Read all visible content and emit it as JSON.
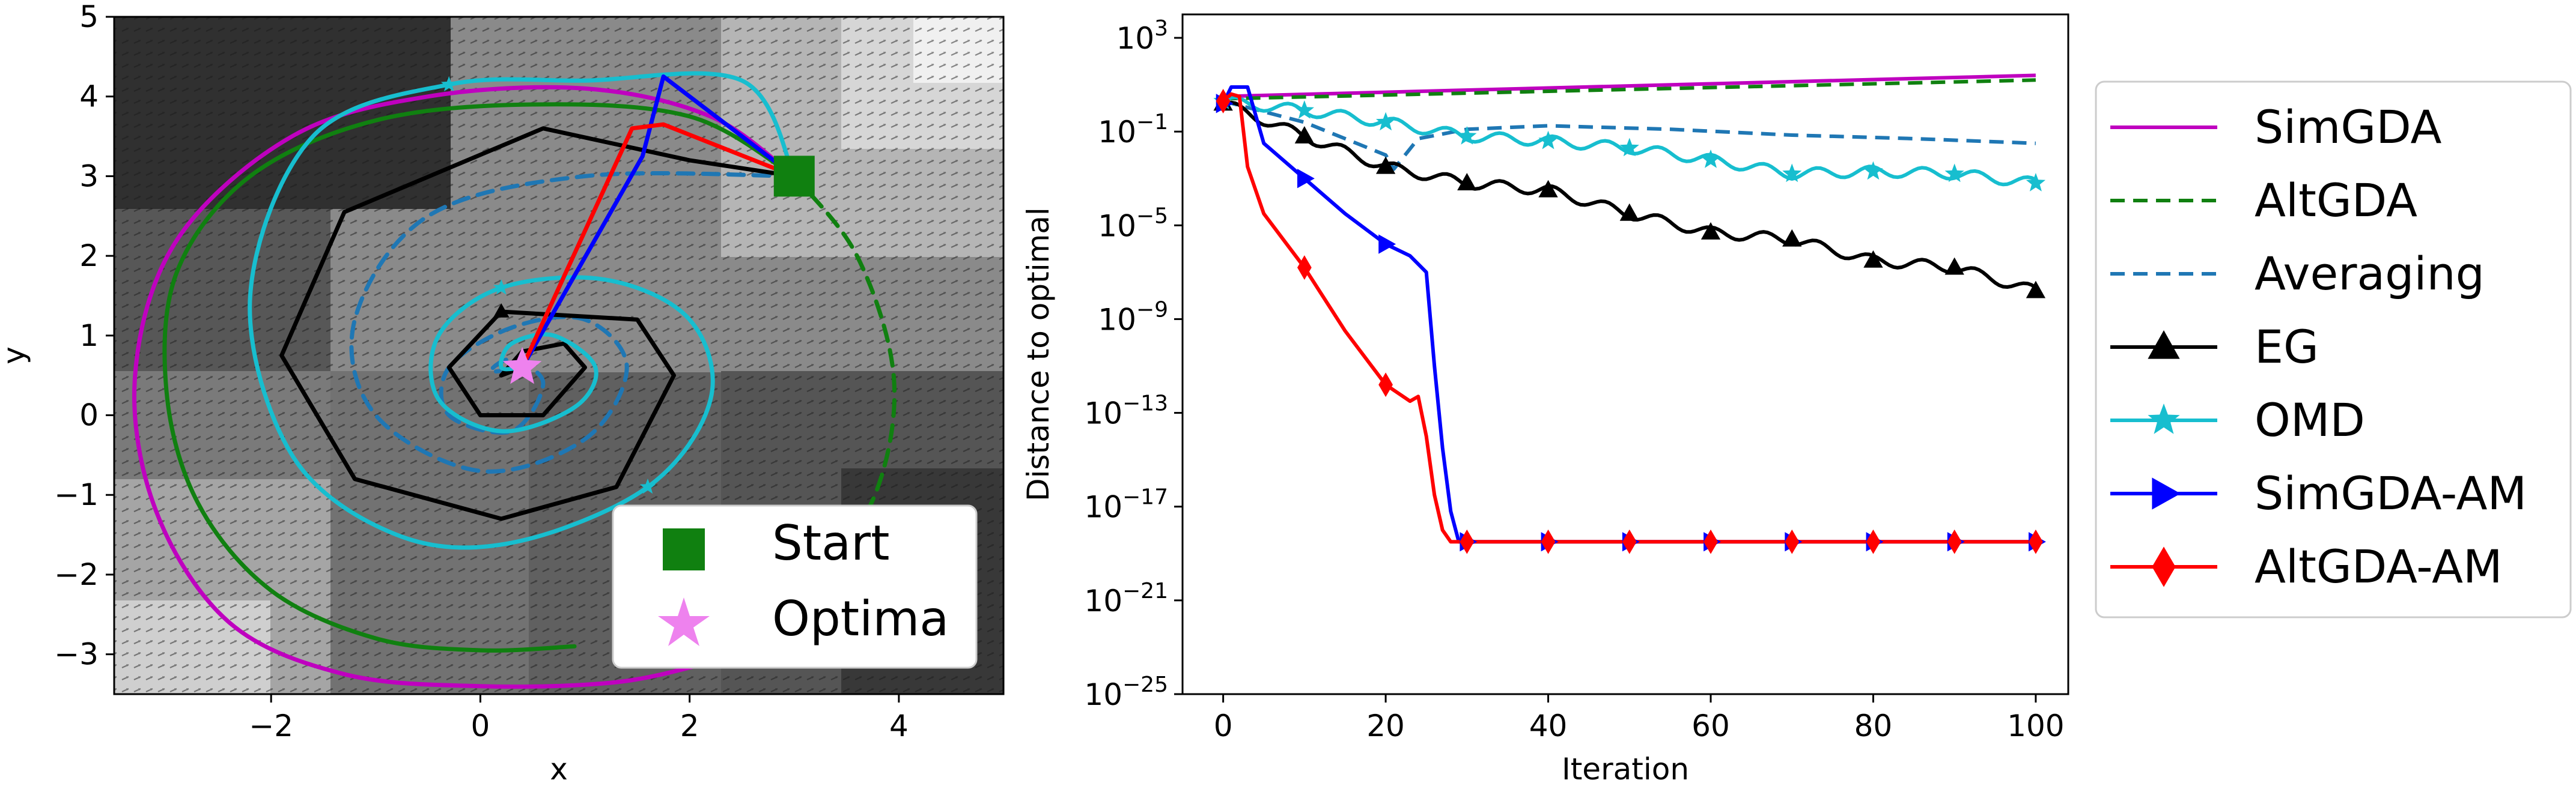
{
  "chart_data": [
    {
      "type": "contour-trajectory",
      "title": "",
      "xlabel": "x",
      "ylabel": "y",
      "xlim": [
        -3.5,
        5
      ],
      "ylim": [
        -3.5,
        5
      ],
      "xticks": [
        "−2",
        "0",
        "2",
        "4"
      ],
      "yticks": [
        "−3",
        "−2",
        "−1",
        "0",
        "1",
        "2",
        "3",
        "4",
        "5"
      ],
      "xtick_values": [
        -2,
        0,
        2,
        4
      ],
      "ytick_values": [
        -3,
        -2,
        -1,
        0,
        1,
        2,
        3,
        4,
        5
      ],
      "legend": [
        {
          "label": "Start",
          "marker": "square",
          "color": "#108010"
        },
        {
          "label": "Optima",
          "marker": "star",
          "color": "#ee82ee"
        }
      ],
      "start": [
        3,
        3
      ],
      "optima": [
        0.4,
        0.6
      ],
      "series": [
        {
          "name": "SimGDA",
          "color": "#bf00bf",
          "style": "solid",
          "x": [
            3.0,
            2.2,
            1.0,
            -0.5,
            -1.8,
            -2.9,
            -3.3,
            -3.1,
            -2.4,
            -1.3,
            0.0,
            1.3,
            2.2
          ],
          "y": [
            3.0,
            3.75,
            4.1,
            4.0,
            3.5,
            2.2,
            0.5,
            -1.2,
            -2.6,
            -3.25,
            -3.4,
            -3.35,
            -3.1
          ]
        },
        {
          "name": "AltGDA",
          "color": "#108010",
          "style": "solid",
          "x": [
            3.0,
            2.0,
            0.5,
            -1.0,
            -2.2,
            -2.9,
            -3.0,
            -2.7,
            -2.0,
            -1.0,
            0.0,
            0.9
          ],
          "y": [
            3.0,
            3.75,
            3.9,
            3.7,
            3.0,
            1.8,
            0.3,
            -1.1,
            -2.2,
            -2.8,
            -2.95,
            -2.9
          ]
        },
        {
          "name": "AltGDA (dashed)",
          "color": "#108010",
          "style": "dashed",
          "x": [
            3.0,
            3.6,
            3.95,
            3.8,
            3.3,
            2.5,
            1.6
          ],
          "y": [
            3.0,
            2.0,
            0.5,
            -0.9,
            -1.9,
            -2.6,
            -2.95
          ]
        },
        {
          "name": "Averaging",
          "color": "#1f77b4",
          "style": "dashed",
          "x": [
            3.0,
            1.0,
            -0.5,
            -1.2,
            -1.0,
            0.0,
            1.0,
            1.4,
            1.0,
            0.3,
            -0.3,
            -0.3,
            0.3,
            0.6,
            0.3,
            0.1,
            0.4
          ],
          "y": [
            3.0,
            3.0,
            2.5,
            1.2,
            0.0,
            -0.7,
            -0.3,
            0.6,
            1.2,
            1.1,
            0.6,
            0.0,
            -0.2,
            0.4,
            0.7,
            0.55,
            0.6
          ]
        },
        {
          "name": "EG",
          "color": "#000000",
          "style": "solid",
          "x": [
            3.0,
            2.0,
            0.6,
            -1.3,
            -1.9,
            -1.2,
            0.2,
            1.3,
            1.85,
            1.5,
            0.2,
            -0.3,
            0.0,
            0.6,
            1.0,
            0.8,
            0.4,
            0.2,
            0.4
          ],
          "y": [
            3.0,
            3.2,
            3.6,
            2.55,
            0.75,
            -0.8,
            -1.3,
            -0.9,
            0.5,
            1.2,
            1.3,
            0.6,
            0.0,
            0.0,
            0.6,
            0.9,
            0.8,
            0.5,
            0.6
          ]
        },
        {
          "name": "OMD",
          "color": "#17becf",
          "style": "solid",
          "x": [
            3.0,
            2.5,
            1.0,
            -0.3,
            -1.6,
            -2.2,
            -1.8,
            -0.8,
            0.3,
            1.6,
            2.2,
            2.0,
            1.2,
            0.2,
            -0.4,
            -0.4,
            0.2,
            0.9,
            1.1,
            0.7,
            0.3,
            0.2,
            0.4
          ],
          "y": [
            3.0,
            4.2,
            4.2,
            4.15,
            3.5,
            1.5,
            -0.5,
            -1.5,
            -1.6,
            -0.9,
            0.2,
            1.2,
            1.7,
            1.6,
            1.0,
            0.2,
            -0.2,
            0.1,
            0.6,
            1.0,
            0.9,
            0.6,
            0.6
          ]
        },
        {
          "name": "SimGDA-AM",
          "color": "#0000ff",
          "style": "solid",
          "x": [
            3.0,
            1.75,
            1.55,
            0.4
          ],
          "y": [
            3.0,
            4.25,
            3.25,
            0.6
          ]
        },
        {
          "name": "AltGDA-AM",
          "color": "#ff0000",
          "style": "solid",
          "x": [
            3.0,
            1.75,
            1.45,
            0.4
          ],
          "y": [
            3.0,
            3.65,
            3.6,
            0.6
          ]
        }
      ]
    },
    {
      "type": "line",
      "title": "",
      "xlabel": "Iteration",
      "ylabel": "Distance to optimal",
      "yscale": "log",
      "xlim": [
        -5,
        104
      ],
      "ylim_exp": [
        -25,
        4
      ],
      "xticks": [
        "0",
        "20",
        "40",
        "60",
        "80",
        "100"
      ],
      "xtick_values": [
        0,
        20,
        40,
        60,
        80,
        100
      ],
      "ytick_exps": [
        3,
        -1,
        -5,
        -9,
        -13,
        -17,
        -21,
        -25
      ],
      "ytick_labels": [
        "10",
        "10",
        "10",
        "10",
        "10",
        "10",
        "10",
        "10"
      ],
      "ytick_sup": [
        "3",
        "−1",
        "−5",
        "−9",
        "−13",
        "−17",
        "−21",
        "−25"
      ],
      "legend": [
        {
          "label": "SimGDA",
          "color": "#bf00bf",
          "style": "solid",
          "marker": "none"
        },
        {
          "label": "AltGDA",
          "color": "#108010",
          "style": "dashed",
          "marker": "none"
        },
        {
          "label": "Averaging",
          "color": "#1f77b4",
          "style": "dashed",
          "marker": "none"
        },
        {
          "label": "EG",
          "color": "#000000",
          "style": "solid",
          "marker": "triangle"
        },
        {
          "label": "OMD",
          "color": "#17becf",
          "style": "solid",
          "marker": "star"
        },
        {
          "label": "SimGDA-AM",
          "color": "#0000ff",
          "style": "solid",
          "marker": "triangle-right"
        },
        {
          "label": "AltGDA-AM",
          "color": "#ff0000",
          "style": "solid",
          "marker": "diamond"
        }
      ],
      "series": [
        {
          "name": "SimGDA",
          "color": "#bf00bf",
          "style": "solid",
          "marker": "none",
          "x": [
            0,
            100
          ],
          "log10_y": [
            0.5,
            1.4
          ]
        },
        {
          "name": "AltGDA",
          "color": "#108010",
          "style": "dashed",
          "marker": "none",
          "x": [
            0,
            100
          ],
          "log10_y": [
            0.4,
            1.2
          ]
        },
        {
          "name": "Averaging",
          "color": "#1f77b4",
          "style": "dashed",
          "marker": "none",
          "x": [
            0,
            10,
            20,
            21,
            24,
            30,
            40,
            55,
            70,
            85,
            100
          ],
          "log10_y": [
            0.3,
            -0.6,
            -2.0,
            -2.6,
            -1.3,
            -0.9,
            -0.75,
            -0.9,
            -1.15,
            -1.3,
            -1.5
          ]
        },
        {
          "name": "EG",
          "color": "#000000",
          "style": "solid",
          "marker": "triangle",
          "x": [
            0,
            10,
            20,
            30,
            40,
            50,
            60,
            70,
            80,
            90,
            100
          ],
          "log10_y": [
            0.2,
            -1.2,
            -2.5,
            -3.2,
            -3.5,
            -4.5,
            -5.3,
            -5.6,
            -6.5,
            -6.8,
            -7.8
          ],
          "markers_x": [
            0,
            10,
            20,
            30,
            40,
            50,
            60,
            70,
            80,
            90,
            100
          ]
        },
        {
          "name": "OMD",
          "color": "#17becf",
          "style": "solid",
          "marker": "star",
          "x": [
            0,
            10,
            20,
            30,
            40,
            50,
            60,
            70,
            80,
            90,
            100
          ],
          "log10_y": [
            0.3,
            -0.1,
            -0.6,
            -1.2,
            -1.4,
            -1.7,
            -2.2,
            -2.8,
            -2.7,
            -2.8,
            -3.2
          ],
          "markers_x": [
            0,
            10,
            20,
            30,
            40,
            50,
            60,
            70,
            80,
            90,
            100
          ]
        },
        {
          "name": "SimGDA-AM",
          "color": "#0000ff",
          "style": "solid",
          "marker": "triangle-right",
          "x": [
            0,
            1,
            3,
            5,
            10,
            15,
            20,
            23,
            25,
            26,
            27,
            28,
            29,
            30,
            40,
            50,
            60,
            70,
            80,
            90,
            100
          ],
          "log10_y": [
            0.2,
            0.9,
            0.9,
            -1.5,
            -3.0,
            -4.5,
            -5.8,
            -6.3,
            -7.0,
            -11,
            -14.5,
            -17.2,
            -18.5,
            -18.5,
            -18.5,
            -18.5,
            -18.5,
            -18.5,
            -18.5,
            -18.5,
            -18.5
          ],
          "markers_x": [
            0,
            10,
            20,
            30,
            40,
            50,
            60,
            70,
            80,
            90,
            100
          ]
        },
        {
          "name": "AltGDA-AM",
          "color": "#ff0000",
          "style": "solid",
          "marker": "diamond",
          "x": [
            0,
            1,
            2,
            3,
            5,
            10,
            15,
            20,
            23,
            24,
            25,
            26,
            27,
            28,
            29,
            30,
            40,
            50,
            60,
            70,
            80,
            90,
            100
          ],
          "log10_y": [
            0.3,
            0.6,
            0.5,
            -2.5,
            -4.5,
            -6.8,
            -9.5,
            -11.8,
            -12.5,
            -12.3,
            -14.0,
            -16.5,
            -18.0,
            -18.5,
            -18.5,
            -18.5,
            -18.5,
            -18.5,
            -18.5,
            -18.5,
            -18.5,
            -18.5,
            -18.5
          ],
          "markers_x": [
            0,
            10,
            20,
            30,
            40,
            50,
            60,
            70,
            80,
            90,
            100
          ]
        }
      ]
    }
  ]
}
